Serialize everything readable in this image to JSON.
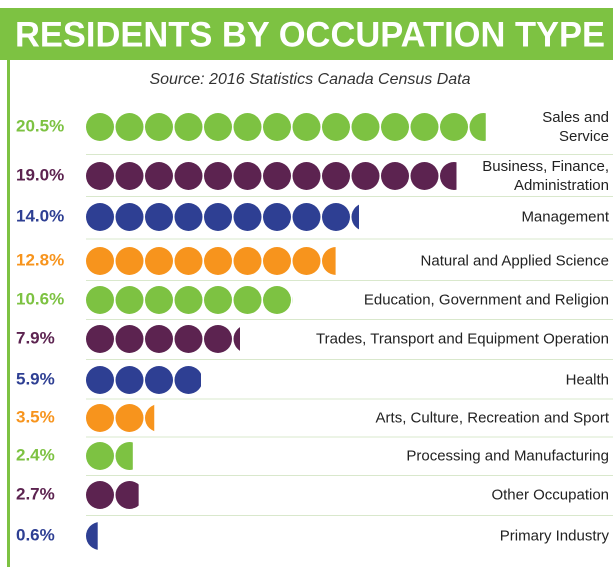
{
  "chart_data": {
    "type": "dot-bar",
    "title": "RESIDENTS BY OCCUPATION TYPE",
    "subtitle": "Source: 2016 Statistics Canada Census Data",
    "categories": [
      "Sales and\nService",
      "Business, Finance,\nAdministration",
      "Management",
      "Natural and Applied Science",
      "Education, Government and Religion",
      "Trades, Transport and Equipment Operation",
      "Health",
      "Arts, Culture, Recreation and Sport",
      "Processing and Manufacturing",
      "Other Occupation",
      "Primary Industry"
    ],
    "values": [
      20.5,
      19.0,
      14.0,
      12.8,
      10.6,
      7.9,
      5.9,
      3.5,
      2.4,
      2.7,
      0.6
    ],
    "value_labels": [
      "20.5%",
      "19.0%",
      "14.0%",
      "12.8%",
      "10.6%",
      "7.9%",
      "5.9%",
      "3.5%",
      "2.4%",
      "2.7%",
      "0.6%"
    ],
    "colors": [
      "#7dc242",
      "#5c2350",
      "#2e3f93",
      "#f7941d",
      "#7dc242",
      "#5c2350",
      "#2e3f93",
      "#f7941d",
      "#7dc242",
      "#5c2350",
      "#2e3f93"
    ],
    "header_color": "#7dc242"
  }
}
